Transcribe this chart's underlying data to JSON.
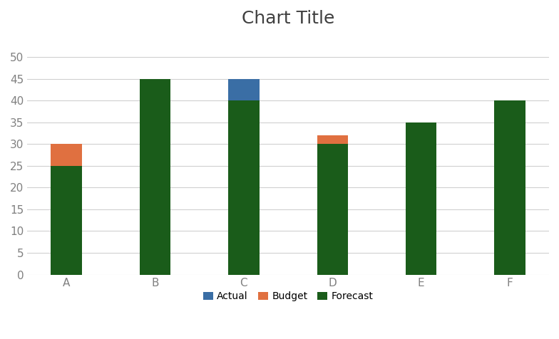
{
  "categories": [
    "A",
    "B",
    "C",
    "D",
    "E",
    "F"
  ],
  "forecast": [
    25,
    45,
    40,
    30,
    35,
    40
  ],
  "budget": [
    5,
    0,
    0,
    2,
    0,
    0
  ],
  "actual": [
    0,
    0,
    5,
    0,
    0,
    0
  ],
  "forecast_color": "#1a5c1a",
  "budget_color": "#e07040",
  "actual_color": "#3a6ea5",
  "title": "Chart Title",
  "title_fontsize": 18,
  "title_color": "#404040",
  "tick_color": "#808080",
  "ylim": [
    0,
    55
  ],
  "yticks": [
    0,
    5,
    10,
    15,
    20,
    25,
    30,
    35,
    40,
    45,
    50
  ],
  "legend_labels": [
    "Actual",
    "Budget",
    "Forecast"
  ],
  "background_color": "#ffffff",
  "bar_width": 0.35,
  "grid_color": "#d0d0d0",
  "tick_fontsize": 11
}
